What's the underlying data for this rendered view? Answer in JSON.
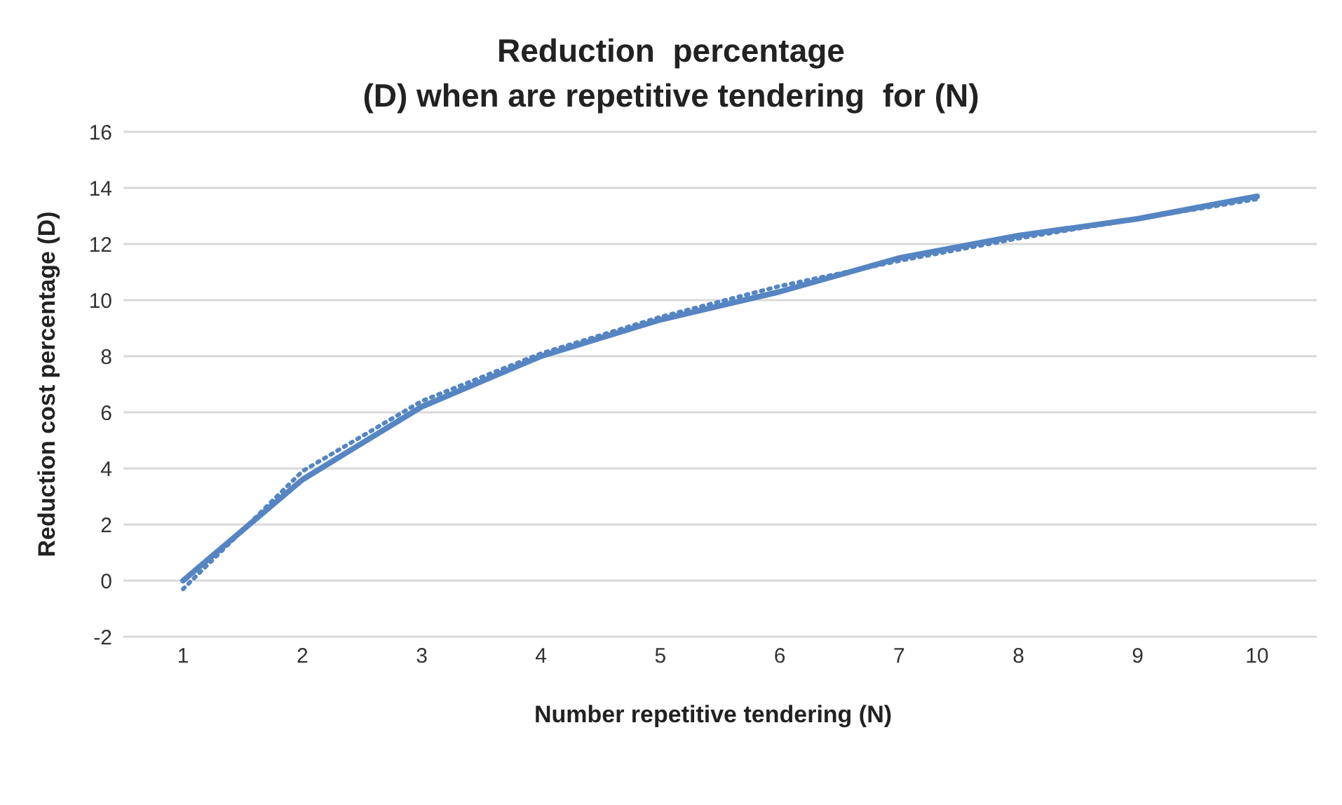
{
  "chart_data": {
    "type": "line",
    "title": "Reduction  percentage\n(D) when are repetitive tendering  for (N)",
    "xlabel": "Number repetitive tendering (N)",
    "ylabel": "Reduction cost percentage (D)",
    "categories": [
      "1",
      "2",
      "3",
      "4",
      "5",
      "6",
      "7",
      "8",
      "9",
      "10"
    ],
    "series": [
      {
        "color": "#5585c2",
        "values": [
          0,
          3.6,
          6.2,
          8.0,
          9.3,
          10.3,
          11.5,
          12.3,
          12.9,
          13.7
        ],
        "line_style": "solid"
      },
      {
        "color": "#5585c2",
        "values": [
          -0.3,
          3.9,
          6.4,
          8.1,
          9.4,
          10.5,
          11.4,
          12.2,
          12.9,
          13.6
        ],
        "line_style": "dotted"
      }
    ],
    "ylim": [
      -2,
      16
    ],
    "yticks": [
      -2,
      0,
      2,
      4,
      6,
      8,
      10,
      12,
      14,
      16
    ],
    "grid": "y",
    "legend": false,
    "marker": "none"
  }
}
